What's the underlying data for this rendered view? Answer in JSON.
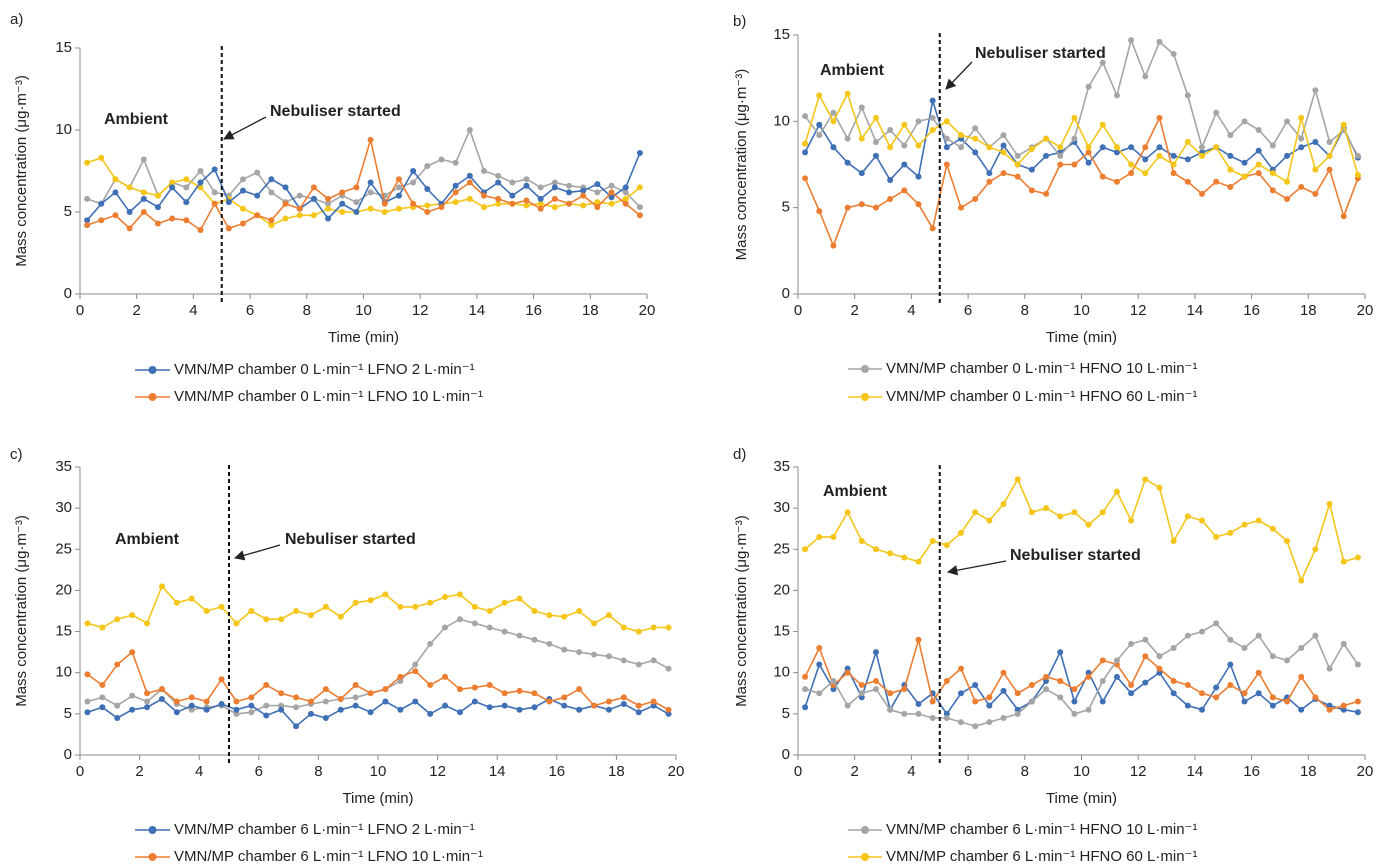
{
  "chart_data": [
    {
      "type": "line",
      "panel_label": "a)",
      "annotations": {
        "ambient": "Ambient",
        "marker": "Nebuliser started"
      },
      "vline": 5,
      "x_label": "Time (min)",
      "y_label": "Mass concentration (μg·m⁻³)",
      "xlim": [
        0,
        20
      ],
      "xticks": [
        0,
        2,
        4,
        6,
        8,
        10,
        12,
        14,
        16,
        18,
        20
      ],
      "ylim": [
        0,
        15
      ],
      "yticks": [
        0,
        5,
        10,
        15
      ],
      "x": [
        0.25,
        0.75,
        1.25,
        1.75,
        2.25,
        2.75,
        3.25,
        3.75,
        4.25,
        4.75,
        5.25,
        5.75,
        6.25,
        6.75,
        7.25,
        7.75,
        8.25,
        8.75,
        9.25,
        9.75,
        10.25,
        10.75,
        11.25,
        11.75,
        12.25,
        12.75,
        13.25,
        13.75,
        14.25,
        14.75,
        15.25,
        15.75,
        16.25,
        16.75,
        17.25,
        17.75,
        18.25,
        18.75,
        19.25,
        19.75
      ],
      "series": [
        {
          "color": "#a5a5a5",
          "values": [
            5.8,
            5.5,
            7.0,
            6.5,
            8.2,
            6.0,
            6.8,
            6.5,
            7.5,
            6.2,
            6.0,
            7.0,
            7.4,
            6.2,
            5.6,
            6.0,
            5.8,
            5.5,
            6.0,
            5.6,
            6.2,
            6.0,
            6.5,
            6.8,
            7.8,
            8.2,
            8.0,
            10.0,
            7.5,
            7.2,
            6.8,
            7.0,
            6.5,
            6.8,
            6.6,
            6.5,
            6.2,
            6.6,
            6.2,
            5.3
          ]
        },
        {
          "color": "#f5c518",
          "values": [
            8.0,
            8.3,
            7.0,
            6.5,
            6.2,
            6.0,
            6.8,
            7.0,
            6.5,
            5.5,
            5.8,
            5.2,
            4.8,
            4.2,
            4.6,
            4.8,
            4.8,
            5.2,
            5.0,
            5.0,
            5.2,
            5.0,
            5.2,
            5.3,
            5.4,
            5.5,
            5.6,
            5.8,
            5.3,
            5.5,
            5.5,
            5.4,
            5.5,
            5.3,
            5.5,
            5.4,
            5.6,
            5.5,
            5.8,
            6.5
          ]
        },
        {
          "name": "VMN/MP chamber 0 L·min⁻¹ LFNO 2 L·min⁻¹",
          "color": "#3f6fb5",
          "values": [
            4.5,
            5.5,
            6.2,
            5.0,
            5.8,
            5.3,
            6.5,
            5.6,
            6.8,
            7.6,
            5.6,
            6.3,
            6.0,
            7.0,
            6.5,
            5.2,
            5.8,
            4.6,
            5.5,
            5.0,
            6.8,
            5.6,
            6.0,
            7.5,
            6.4,
            5.5,
            6.6,
            7.2,
            6.2,
            6.8,
            6.0,
            6.6,
            5.8,
            6.5,
            6.2,
            6.3,
            6.7,
            5.9,
            6.5,
            8.6
          ]
        },
        {
          "name": "VMN/MP chamber 0 L·min⁻¹ LFNO 10 L·min⁻¹",
          "color": "#ed7d31",
          "values": [
            4.2,
            4.5,
            4.8,
            4.0,
            5.0,
            4.3,
            4.6,
            4.5,
            3.9,
            5.5,
            4.0,
            4.3,
            4.8,
            4.5,
            5.5,
            5.2,
            6.5,
            5.8,
            6.2,
            6.5,
            9.4,
            5.5,
            7.0,
            5.5,
            5.0,
            5.3,
            6.2,
            6.8,
            6.0,
            5.8,
            5.5,
            5.7,
            5.2,
            5.8,
            5.5,
            6.0,
            5.3,
            6.2,
            5.5,
            4.8
          ]
        }
      ]
    },
    {
      "type": "line",
      "panel_label": "b)",
      "annotations": {
        "ambient": "Ambient",
        "marker": "Nebuliser started"
      },
      "vline": 5,
      "x_label": "Time (min)",
      "y_label": "Mass concentration (μg·m⁻³)",
      "xlim": [
        0,
        20
      ],
      "xticks": [
        0,
        2,
        4,
        6,
        8,
        10,
        12,
        14,
        16,
        18,
        20
      ],
      "ylim": [
        0,
        15
      ],
      "yticks": [
        0,
        5,
        10,
        15
      ],
      "x": [
        0.25,
        0.75,
        1.25,
        1.75,
        2.25,
        2.75,
        3.25,
        3.75,
        4.25,
        4.75,
        5.25,
        5.75,
        6.25,
        6.75,
        7.25,
        7.75,
        8.25,
        8.75,
        9.25,
        9.75,
        10.25,
        10.75,
        11.25,
        11.75,
        12.25,
        12.75,
        13.25,
        13.75,
        14.25,
        14.75,
        15.25,
        15.75,
        16.25,
        16.75,
        17.25,
        17.75,
        18.25,
        18.75,
        19.25,
        19.75
      ],
      "series": [
        {
          "color": "#3f6fb5",
          "values": [
            8.2,
            9.8,
            8.5,
            7.6,
            7.0,
            8.0,
            6.6,
            7.5,
            6.8,
            11.2,
            8.5,
            9.0,
            8.2,
            7.0,
            8.6,
            7.5,
            7.2,
            8.0,
            8.2,
            8.8,
            7.6,
            8.5,
            8.2,
            8.5,
            7.8,
            8.5,
            8.0,
            7.8,
            8.2,
            8.5,
            8.0,
            7.6,
            8.3,
            7.2,
            8.0,
            8.5,
            8.8,
            8.0,
            9.6,
            7.9
          ]
        },
        {
          "color": "#ed7d31",
          "values": [
            6.7,
            4.8,
            2.8,
            5.0,
            5.2,
            5.0,
            5.5,
            6.0,
            5.2,
            3.8,
            7.5,
            5.0,
            5.5,
            6.5,
            7.0,
            6.8,
            6.0,
            5.8,
            7.5,
            7.5,
            8.2,
            6.8,
            6.5,
            7.0,
            8.5,
            10.2,
            7.0,
            6.5,
            5.8,
            6.5,
            6.2,
            6.8,
            7.0,
            6.0,
            5.5,
            6.2,
            5.8,
            7.2,
            4.5,
            6.7
          ]
        },
        {
          "name": "VMN/MP chamber 0 L·min⁻¹ HFNO 10 L·min⁻¹",
          "color": "#a5a5a5",
          "values": [
            10.3,
            9.2,
            10.5,
            9.0,
            10.8,
            8.8,
            9.5,
            8.6,
            10.0,
            10.2,
            9.0,
            8.5,
            9.6,
            8.5,
            9.2,
            8.0,
            8.5,
            9.0,
            8.0,
            9.0,
            12.0,
            13.4,
            11.5,
            14.7,
            12.6,
            14.6,
            13.9,
            11.5,
            8.5,
            10.5,
            9.2,
            10.0,
            9.5,
            8.6,
            10.0,
            9.0,
            11.8,
            8.8,
            9.5,
            8.0
          ]
        },
        {
          "name": "VMN/MP chamber 0 L·min⁻¹ HFNO 60 L·min⁻¹",
          "color": "#f5c518",
          "values": [
            8.7,
            11.5,
            10.0,
            11.6,
            9.0,
            10.2,
            8.5,
            9.8,
            8.6,
            9.5,
            10.0,
            9.2,
            9.0,
            8.5,
            8.2,
            7.5,
            8.4,
            9.0,
            8.5,
            10.2,
            8.5,
            9.8,
            8.5,
            7.5,
            7.0,
            8.0,
            7.5,
            8.8,
            8.0,
            8.5,
            7.2,
            6.8,
            7.5,
            7.0,
            6.5,
            10.2,
            7.2,
            8.0,
            9.8,
            6.9
          ]
        }
      ]
    },
    {
      "type": "line",
      "panel_label": "c)",
      "annotations": {
        "ambient": "Ambient",
        "marker": "Nebuliser started"
      },
      "vline": 5,
      "x_label": "Time (min)",
      "y_label": "Mass concentration (μg·m⁻³)",
      "xlim": [
        0,
        20
      ],
      "xticks": [
        0,
        2,
        4,
        6,
        8,
        10,
        12,
        14,
        16,
        18,
        20
      ],
      "ylim": [
        0,
        35
      ],
      "yticks": [
        0,
        5,
        10,
        15,
        20,
        25,
        30,
        35
      ],
      "x": [
        0.25,
        0.75,
        1.25,
        1.75,
        2.25,
        2.75,
        3.25,
        3.75,
        4.25,
        4.75,
        5.25,
        5.75,
        6.25,
        6.75,
        7.25,
        7.75,
        8.25,
        8.75,
        9.25,
        9.75,
        10.25,
        10.75,
        11.25,
        11.75,
        12.25,
        12.75,
        13.25,
        13.75,
        14.25,
        14.75,
        15.25,
        15.75,
        16.25,
        16.75,
        17.25,
        17.75,
        18.25,
        18.75,
        19.25,
        19.75
      ],
      "series": [
        {
          "color": "#a5a5a5",
          "values": [
            6.5,
            7.0,
            6.0,
            7.2,
            6.5,
            8.0,
            6.2,
            5.5,
            5.8,
            6.0,
            5.0,
            5.2,
            6.0,
            6.0,
            5.8,
            6.2,
            6.5,
            6.8,
            7.0,
            7.5,
            8.0,
            9.0,
            11.0,
            13.5,
            15.5,
            16.5,
            16.0,
            15.5,
            15.0,
            14.5,
            14.0,
            13.5,
            12.8,
            12.5,
            12.2,
            12.0,
            11.5,
            11.0,
            11.5,
            10.5
          ]
        },
        {
          "color": "#f5c518",
          "values": [
            16.0,
            15.5,
            16.5,
            17.0,
            16.0,
            20.5,
            18.5,
            19.0,
            17.5,
            18.0,
            16.0,
            17.5,
            16.5,
            16.5,
            17.5,
            17.0,
            18.0,
            16.8,
            18.5,
            18.8,
            19.5,
            18.0,
            18.0,
            18.5,
            19.2,
            19.5,
            18.0,
            17.5,
            18.5,
            19.0,
            17.5,
            17.0,
            16.8,
            17.5,
            16.0,
            17.0,
            15.5,
            15.0,
            15.5,
            15.5
          ]
        },
        {
          "name": "VMN/MP chamber 6 L·min⁻¹ LFNO 2 L·min⁻¹",
          "color": "#3f6fb5",
          "values": [
            5.2,
            5.8,
            4.5,
            5.5,
            5.8,
            6.8,
            5.2,
            6.0,
            5.5,
            6.2,
            5.5,
            6.0,
            4.8,
            5.5,
            3.5,
            5.0,
            4.5,
            5.5,
            6.0,
            5.2,
            6.5,
            5.5,
            6.5,
            5.0,
            6.0,
            5.2,
            6.5,
            5.8,
            6.0,
            5.5,
            5.8,
            6.8,
            6.0,
            5.5,
            6.0,
            5.5,
            6.2,
            5.2,
            6.0,
            5.0
          ]
        },
        {
          "name": "VMN/MP chamber 6 L·min⁻¹ LFNO 10 L·min⁻¹",
          "color": "#ed7d31",
          "values": [
            9.8,
            8.5,
            11.0,
            12.5,
            7.5,
            8.0,
            6.5,
            7.0,
            6.5,
            9.2,
            6.5,
            7.0,
            8.5,
            7.5,
            7.0,
            6.5,
            8.0,
            6.8,
            8.5,
            7.5,
            8.0,
            9.5,
            10.2,
            8.5,
            9.5,
            8.0,
            8.2,
            8.5,
            7.5,
            7.8,
            7.5,
            6.5,
            7.0,
            8.0,
            6.0,
            6.5,
            7.0,
            6.0,
            6.5,
            5.5
          ]
        }
      ]
    },
    {
      "type": "line",
      "panel_label": "d)",
      "annotations": {
        "ambient": "Ambient",
        "marker": "Nebuliser started"
      },
      "vline": 5,
      "x_label": "Time (min)",
      "y_label": "Mass concentration (μg·m⁻³)",
      "xlim": [
        0,
        20
      ],
      "xticks": [
        0,
        2,
        4,
        6,
        8,
        10,
        12,
        14,
        16,
        18,
        20
      ],
      "ylim": [
        0,
        35
      ],
      "yticks": [
        0,
        5,
        10,
        15,
        20,
        25,
        30,
        35
      ],
      "x": [
        0.25,
        0.75,
        1.25,
        1.75,
        2.25,
        2.75,
        3.25,
        3.75,
        4.25,
        4.75,
        5.25,
        5.75,
        6.25,
        6.75,
        7.25,
        7.75,
        8.25,
        8.75,
        9.25,
        9.75,
        10.25,
        10.75,
        11.25,
        11.75,
        12.25,
        12.75,
        13.25,
        13.75,
        14.25,
        14.75,
        15.25,
        15.75,
        16.25,
        16.75,
        17.25,
        17.75,
        18.25,
        18.75,
        19.25,
        19.75
      ],
      "series": [
        {
          "color": "#3f6fb5",
          "values": [
            5.8,
            11.0,
            8.0,
            10.5,
            7.0,
            12.5,
            5.5,
            8.5,
            6.2,
            7.5,
            5.0,
            7.5,
            8.5,
            6.0,
            7.8,
            5.5,
            6.5,
            9.0,
            12.5,
            6.5,
            10.0,
            6.5,
            9.5,
            7.5,
            8.8,
            10.0,
            7.5,
            6.0,
            5.5,
            8.2,
            11.0,
            6.5,
            7.5,
            6.0,
            7.0,
            5.5,
            6.8,
            6.0,
            5.5,
            5.2
          ]
        },
        {
          "color": "#ed7d31",
          "values": [
            9.5,
            13.0,
            8.5,
            10.0,
            8.5,
            9.0,
            7.5,
            8.0,
            14.0,
            6.5,
            9.0,
            10.5,
            6.5,
            7.0,
            10.0,
            7.5,
            8.5,
            9.5,
            9.0,
            8.0,
            9.5,
            11.5,
            11.0,
            8.5,
            12.0,
            10.5,
            9.0,
            8.5,
            7.5,
            7.0,
            8.5,
            7.5,
            10.0,
            7.0,
            6.5,
            9.5,
            7.0,
            5.5,
            6.0,
            6.5
          ]
        },
        {
          "name": "VMN/MP chamber 6 L·min⁻¹ HFNO 10 L·min⁻¹",
          "color": "#a5a5a5",
          "values": [
            8.0,
            7.5,
            9.0,
            6.0,
            7.5,
            8.0,
            5.5,
            5.0,
            5.0,
            4.5,
            4.5,
            4.0,
            3.5,
            4.0,
            4.5,
            5.0,
            6.5,
            8.0,
            7.0,
            5.0,
            5.5,
            9.0,
            11.5,
            13.5,
            14.0,
            12.0,
            13.0,
            14.5,
            15.0,
            16.0,
            14.0,
            13.0,
            14.5,
            12.0,
            11.5,
            13.0,
            14.5,
            10.5,
            13.5,
            11.0
          ]
        },
        {
          "name": "VMN/MP chamber 6 L·min⁻¹ HFNO 60 L·min⁻¹",
          "color": "#f5c518",
          "values": [
            25.0,
            26.5,
            26.5,
            29.5,
            26.0,
            25.0,
            24.5,
            24.0,
            23.5,
            26.0,
            25.5,
            27.0,
            29.5,
            28.5,
            30.5,
            33.5,
            29.5,
            30.0,
            29.0,
            29.5,
            28.0,
            29.5,
            32.0,
            28.5,
            33.5,
            32.5,
            26.0,
            29.0,
            28.5,
            26.5,
            27.0,
            28.0,
            28.5,
            27.5,
            26.0,
            21.2,
            25.0,
            30.5,
            23.5,
            24.0
          ]
        }
      ]
    }
  ]
}
